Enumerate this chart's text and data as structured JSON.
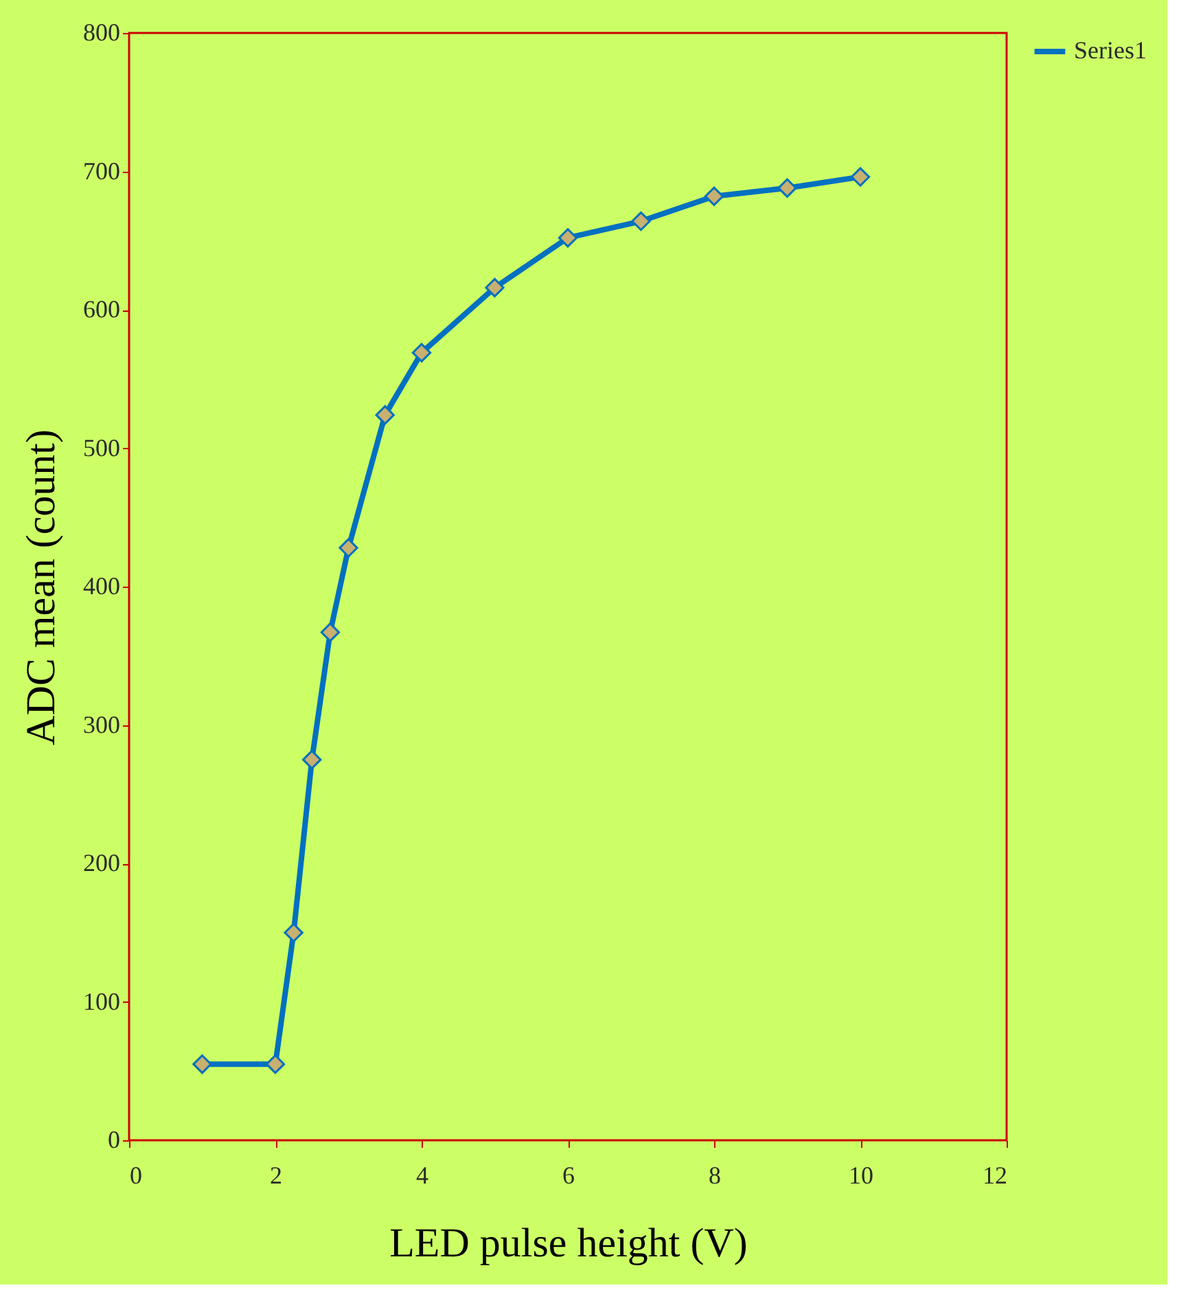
{
  "chart_data": {
    "type": "line",
    "xlabel": "LED pulse height (V)",
    "ylabel": "ADC mean (count)",
    "x": [
      1,
      2,
      2.25,
      2.5,
      2.75,
      3,
      3.5,
      4,
      5,
      6,
      7,
      8,
      9,
      10
    ],
    "series": [
      {
        "name": "Series1",
        "color": "#0070c0",
        "values": [
          55,
          55,
          150,
          275,
          367,
          428,
          524,
          569,
          616,
          652,
          664,
          682,
          688,
          696
        ]
      }
    ],
    "xlim": [
      0,
      12
    ],
    "xticks": [
      0,
      2,
      4,
      6,
      8,
      10,
      12
    ],
    "ylim": [
      0,
      800
    ],
    "yticks": [
      0,
      100,
      200,
      300,
      400,
      500,
      600,
      700,
      800
    ],
    "grid": false,
    "legend": "right",
    "marker": "diamond",
    "line_style": "solid"
  }
}
